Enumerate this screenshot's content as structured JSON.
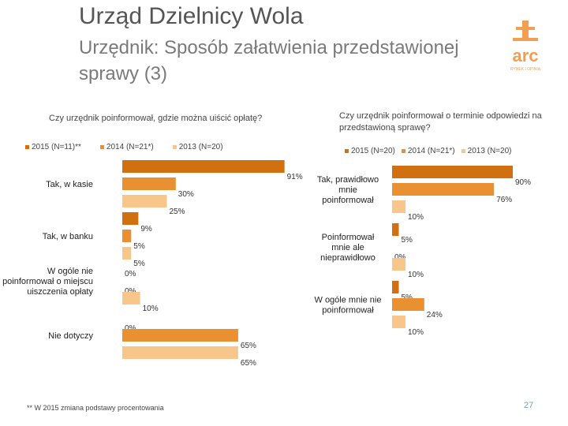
{
  "header": {
    "title": "Urząd Dzielnicy Wola",
    "subtitle": "Urzędnik: Sposób załatwienia przedstawionej sprawy (3)"
  },
  "logo": {
    "text": "arc",
    "subtext": "RYNEK I OPINIA"
  },
  "colors": {
    "series_2015": "#d07010",
    "series_2014": "#e99030",
    "series_2013": "#f8c68a",
    "title": "#555555",
    "subtitle": "#7a7a7a",
    "logo": "#f0a050"
  },
  "chart_data": [
    {
      "type": "bar",
      "orientation": "horizontal",
      "title": "Czy urzędnik poinformował, gdzie można uiścić opłatę?",
      "legend": [
        "2015 (N=11)**",
        "2014 (N=21*)",
        "2013 (N=20)"
      ],
      "categories": [
        "Tak, w kasie",
        "Tak, w banku",
        "W ogóle nie poinformował o miejscu uiszczenia opłaty",
        "Nie dotyczy"
      ],
      "series": [
        {
          "name": "2015 (N=11)**",
          "values": [
            91,
            9,
            0,
            0
          ],
          "labels": [
            "91%",
            "9%",
            "0%",
            "0%"
          ]
        },
        {
          "name": "2014 (N=21*)",
          "values": [
            30,
            5,
            0,
            65
          ],
          "labels": [
            "30%",
            "5%",
            "0%",
            "65%"
          ]
        },
        {
          "name": "2013 (N=20)",
          "values": [
            25,
            5,
            10,
            65
          ],
          "labels": [
            "25%",
            "5%",
            "10%",
            "65%"
          ]
        }
      ],
      "xlim": [
        0,
        100
      ]
    },
    {
      "type": "bar",
      "orientation": "horizontal",
      "title": "Czy urzędnik poinformował o terminie odpowiedzi na przedstawioną sprawę?",
      "legend": [
        "2015 (N=20)",
        "2014 (N=21*)",
        "2013 (N=20)"
      ],
      "categories": [
        "Tak, prawidłowo mnie poinformował",
        "Poinformował mnie ale nieprawidłowo",
        "W ogóle mnie nie poinformował"
      ],
      "series": [
        {
          "name": "2015 (N=20)",
          "values": [
            90,
            5,
            5
          ],
          "labels": [
            "90%",
            "5%",
            "5%"
          ]
        },
        {
          "name": "2014 (N=21*)",
          "values": [
            76,
            0,
            24
          ],
          "labels": [
            "76%",
            "0%",
            "24%"
          ]
        },
        {
          "name": "2013 (N=20)",
          "values": [
            10,
            10,
            10
          ],
          "labels": [
            "10%",
            "10%",
            "10%"
          ]
        }
      ],
      "xlim": [
        0,
        100
      ]
    }
  ],
  "footnote": "** W 2015 zmiana podstawy procentowania",
  "page_number": "27"
}
